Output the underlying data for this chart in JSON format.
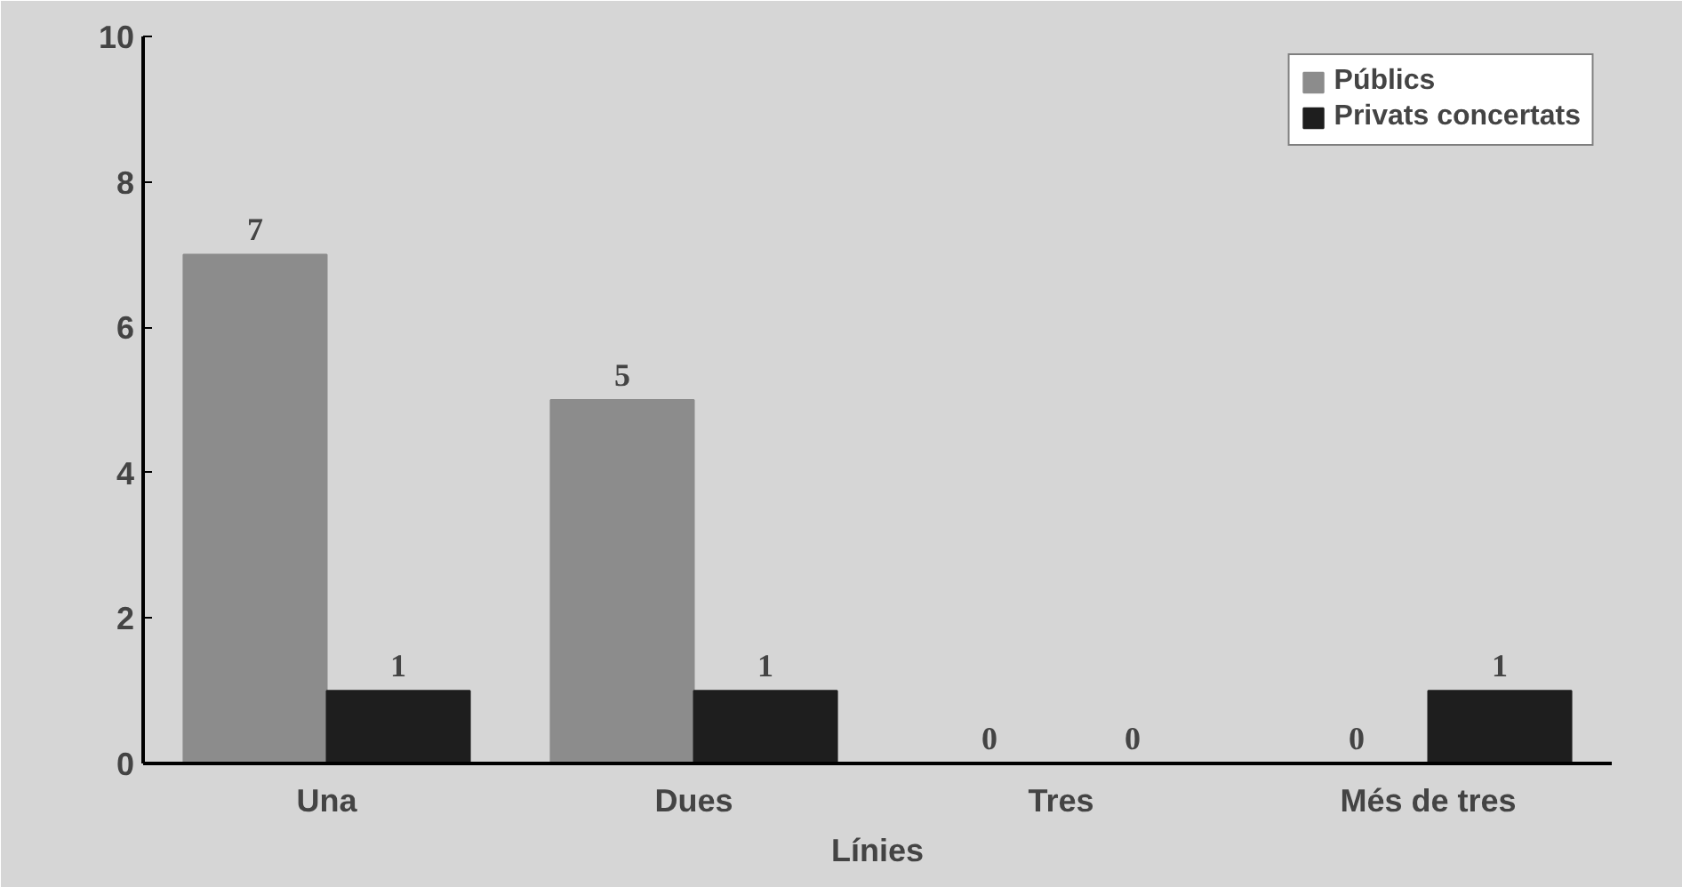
{
  "chart_data": {
    "type": "bar",
    "xlabel": "Línies",
    "categories": [
      "Una",
      "Dues",
      "Tres",
      "Més de tres"
    ],
    "series": [
      {
        "name": "Públics",
        "color": "#8c8c8c",
        "values": [
          7,
          5,
          0,
          0
        ]
      },
      {
        "name": "Privats concertats",
        "color": "#1e1e1e",
        "values": [
          1,
          1,
          0,
          1
        ]
      }
    ],
    "ylim": [
      0,
      10
    ],
    "yticks": [
      0,
      2,
      4,
      6,
      8,
      10
    ],
    "data_labels": true,
    "grid": false,
    "legend": "top right"
  }
}
